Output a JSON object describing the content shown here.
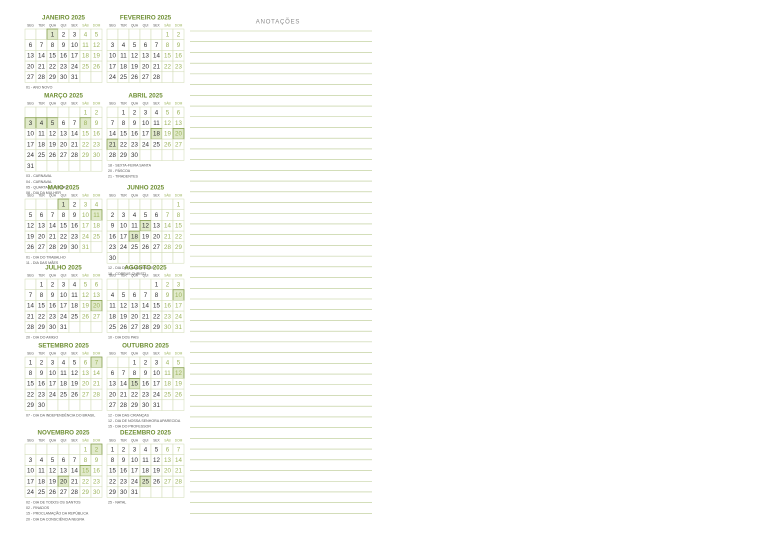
{
  "annotations_title": "ANOTAÇÕES",
  "weekdays": [
    "SEG",
    "TER",
    "QUA",
    "QUI",
    "SEX",
    "SÁB",
    "DOM"
  ],
  "months": [
    {
      "name": "JANEIRO 2025",
      "weeks": [
        [
          null,
          null,
          1,
          2,
          3,
          4,
          5
        ],
        [
          6,
          7,
          8,
          9,
          10,
          11,
          12
        ],
        [
          13,
          14,
          15,
          16,
          17,
          18,
          19
        ],
        [
          20,
          21,
          22,
          23,
          24,
          25,
          26
        ],
        [
          27,
          28,
          29,
          30,
          31,
          null,
          null
        ]
      ],
      "highlight": [
        1
      ],
      "notes": [
        "01 - ANO NOVO"
      ]
    },
    {
      "name": "FEVEREIRO 2025",
      "weeks": [
        [
          null,
          null,
          null,
          null,
          null,
          1,
          2
        ],
        [
          3,
          4,
          5,
          6,
          7,
          8,
          9
        ],
        [
          10,
          11,
          12,
          13,
          14,
          15,
          16
        ],
        [
          17,
          18,
          19,
          20,
          21,
          22,
          23
        ],
        [
          24,
          25,
          26,
          27,
          28,
          null,
          null
        ]
      ],
      "highlight": [],
      "notes": []
    },
    {
      "name": "MARÇO 2025",
      "weeks": [
        [
          null,
          null,
          null,
          null,
          null,
          1,
          2
        ],
        [
          3,
          4,
          5,
          6,
          7,
          8,
          9
        ],
        [
          10,
          11,
          12,
          13,
          14,
          15,
          16
        ],
        [
          17,
          18,
          19,
          20,
          21,
          22,
          23
        ],
        [
          24,
          25,
          26,
          27,
          28,
          29,
          30
        ],
        [
          31,
          null,
          null,
          null,
          null,
          null,
          null
        ]
      ],
      "highlight": [
        3,
        4,
        5,
        8
      ],
      "notes": [
        "03 - CARNAVAL",
        "04 - CARNAVAL",
        "05 - QUARTA DE CINZAS",
        "08 - DIA DA MULHER"
      ]
    },
    {
      "name": "ABRIL 2025",
      "weeks": [
        [
          null,
          1,
          2,
          3,
          4,
          5,
          6
        ],
        [
          7,
          8,
          9,
          10,
          11,
          12,
          13
        ],
        [
          14,
          15,
          16,
          17,
          18,
          19,
          20
        ],
        [
          21,
          22,
          23,
          24,
          25,
          26,
          27
        ],
        [
          28,
          29,
          30,
          null,
          null,
          null,
          null
        ]
      ],
      "highlight": [
        18,
        20,
        21
      ],
      "notes": [
        "18 - SEXTA-FEIRA SANTA",
        "20 - PÁSCOA",
        "21 - TIRADENTES"
      ]
    },
    {
      "name": "MAIO 2025",
      "weeks": [
        [
          null,
          null,
          null,
          1,
          2,
          3,
          4
        ],
        [
          5,
          6,
          7,
          8,
          9,
          10,
          11
        ],
        [
          12,
          13,
          14,
          15,
          16,
          17,
          18
        ],
        [
          19,
          20,
          21,
          22,
          23,
          24,
          25
        ],
        [
          26,
          27,
          28,
          29,
          30,
          31,
          null
        ]
      ],
      "highlight": [
        1,
        11
      ],
      "notes": [
        "01 - DIA DO TRABALHO",
        "11 - DIA DAS MÃES"
      ]
    },
    {
      "name": "JUNHO 2025",
      "weeks": [
        [
          null,
          null,
          null,
          null,
          null,
          null,
          1
        ],
        [
          2,
          3,
          4,
          5,
          6,
          7,
          8
        ],
        [
          9,
          10,
          11,
          12,
          13,
          14,
          15
        ],
        [
          16,
          17,
          18,
          19,
          20,
          21,
          22
        ],
        [
          23,
          24,
          25,
          26,
          27,
          28,
          29
        ],
        [
          30,
          null,
          null,
          null,
          null,
          null,
          null
        ]
      ],
      "highlight": [
        12,
        18
      ],
      "notes": [
        "12 - DIA DOS NAMORADOS",
        "18 - CORPUS CHRISTI"
      ]
    },
    {
      "name": "JULHO 2025",
      "weeks": [
        [
          null,
          1,
          2,
          3,
          4,
          5,
          6
        ],
        [
          7,
          8,
          9,
          10,
          11,
          12,
          13
        ],
        [
          14,
          15,
          16,
          17,
          18,
          19,
          20
        ],
        [
          21,
          22,
          23,
          24,
          25,
          26,
          27
        ],
        [
          28,
          29,
          30,
          31,
          null,
          null,
          null
        ]
      ],
      "highlight": [
        20
      ],
      "notes": [
        "20 - DIA DO AMIGO"
      ]
    },
    {
      "name": "AGOSTO 2025",
      "weeks": [
        [
          null,
          null,
          null,
          null,
          1,
          2,
          3
        ],
        [
          4,
          5,
          6,
          7,
          8,
          9,
          10
        ],
        [
          11,
          12,
          13,
          14,
          15,
          16,
          17
        ],
        [
          18,
          19,
          20,
          21,
          22,
          23,
          24
        ],
        [
          25,
          26,
          27,
          28,
          29,
          30,
          31
        ]
      ],
      "highlight": [
        10
      ],
      "notes": [
        "10 - DIA DOS PAIS"
      ]
    },
    {
      "name": "SETEMBRO 2025",
      "weeks": [
        [
          1,
          2,
          3,
          4,
          5,
          6,
          7
        ],
        [
          8,
          9,
          10,
          11,
          12,
          13,
          14
        ],
        [
          15,
          16,
          17,
          18,
          19,
          20,
          21
        ],
        [
          22,
          23,
          24,
          25,
          26,
          27,
          28
        ],
        [
          29,
          30,
          null,
          null,
          null,
          null,
          null
        ]
      ],
      "highlight": [
        7
      ],
      "notes": [
        "07 - DIA DA INDEPENDÊNCIA DO BRASIL"
      ]
    },
    {
      "name": "OUTUBRO 2025",
      "weeks": [
        [
          null,
          null,
          1,
          2,
          3,
          4,
          5
        ],
        [
          6,
          7,
          8,
          9,
          10,
          11,
          12
        ],
        [
          13,
          14,
          15,
          16,
          17,
          18,
          19
        ],
        [
          20,
          21,
          22,
          23,
          24,
          25,
          26
        ],
        [
          27,
          28,
          29,
          30,
          31,
          null,
          null
        ]
      ],
      "highlight": [
        12,
        15
      ],
      "notes": [
        "12 - DIA DAS CRIANÇAS",
        "12 - DIA DE NOSSA SENHORA APARECIDA",
        "15 - DIA DO PROFESSOR"
      ]
    },
    {
      "name": "NOVEMBRO 2025",
      "weeks": [
        [
          null,
          null,
          null,
          null,
          null,
          1,
          2
        ],
        [
          3,
          4,
          5,
          6,
          7,
          8,
          9
        ],
        [
          10,
          11,
          12,
          13,
          14,
          15,
          16
        ],
        [
          17,
          18,
          19,
          20,
          21,
          22,
          23
        ],
        [
          24,
          25,
          26,
          27,
          28,
          29,
          30
        ]
      ],
      "highlight": [
        2,
        15,
        20
      ],
      "notes": [
        "02 - DIA DE TODOS OS SANTOS",
        "02 - FINADOS",
        "15 - PROCLAMAÇÃO DA REPÚBLICA",
        "20 - DIA DA CONSCIÊNCIA NEGRA"
      ]
    },
    {
      "name": "DEZEMBRO 2025",
      "weeks": [
        [
          1,
          2,
          3,
          4,
          5,
          6,
          7
        ],
        [
          8,
          9,
          10,
          11,
          12,
          13,
          14
        ],
        [
          15,
          16,
          17,
          18,
          19,
          20,
          21
        ],
        [
          22,
          23,
          24,
          25,
          26,
          27,
          28
        ],
        [
          29,
          30,
          31,
          null,
          null,
          null,
          null
        ]
      ],
      "highlight": [
        25
      ],
      "notes": [
        "25 - NATAL"
      ]
    }
  ]
}
